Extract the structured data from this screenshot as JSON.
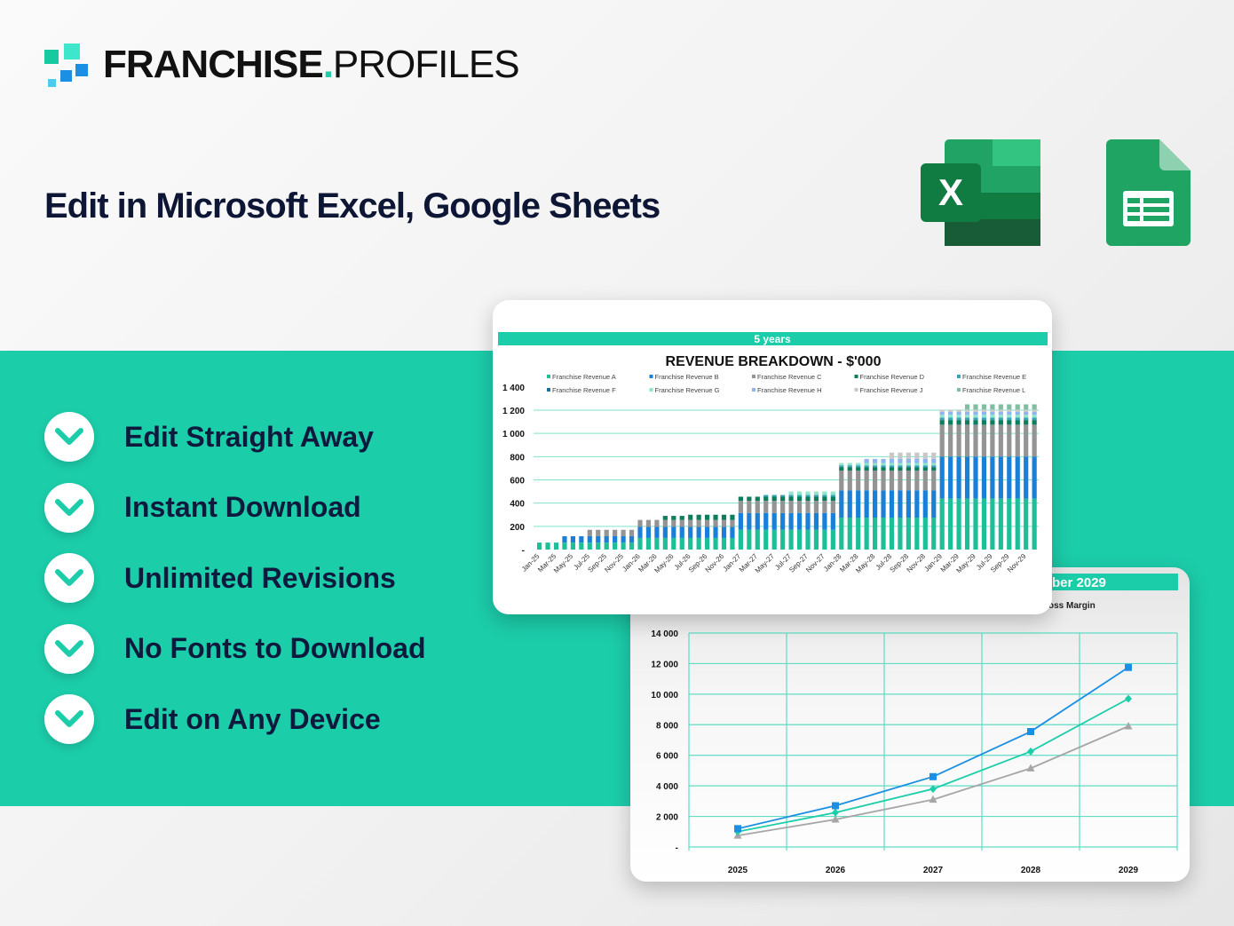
{
  "brand": {
    "logo_text_bold": "FRANCHISE",
    "logo_dot": ".",
    "logo_text_light": "PROFILES",
    "colors": {
      "teal": "#1ccdaa",
      "blue": "#1a8fe3",
      "navy": "#0e1635"
    }
  },
  "headline": "Edit in Microsoft Excel, Google Sheets",
  "app_icons": [
    "microsoft-excel-icon",
    "google-sheets-icon"
  ],
  "excel_letter": "X",
  "features": [
    "Edit Straight Away",
    "Instant Download",
    "Unlimited Revisions",
    "No Fonts to Download",
    "Edit on Any Device"
  ],
  "chart_data": [
    {
      "type": "bar",
      "stacked": true,
      "header": "5 years",
      "title": "REVENUE BREAKDOWN - $'000",
      "legend_position": "top",
      "grid": true,
      "ylim": [
        0,
        1400
      ],
      "yticks": [
        "-",
        "200",
        "400",
        "600",
        "800",
        "1 000",
        "1 200",
        "1 400"
      ],
      "xtick_labels": [
        "Jan-25",
        "Mar-25",
        "May-25",
        "Jul-25",
        "Sep-25",
        "Nov-25",
        "Jan-26",
        "Mar-26",
        "May-26",
        "Jul-26",
        "Sep-26",
        "Nov-26",
        "Jan-27",
        "Mar-27",
        "May-27",
        "Jul-27",
        "Sep-27",
        "Nov-27",
        "Jan-28",
        "Mar-28",
        "May-28",
        "Jul-28",
        "Sep-28",
        "Nov-28",
        "Jan-29",
        "Mar-29",
        "May-29",
        "Jul-29",
        "Sep-29",
        "Nov-29"
      ],
      "series": [
        {
          "name": "Franchise Revenue A",
          "color": "#1dbf98",
          "values": [
            60,
            60,
            60,
            60,
            60,
            60,
            60,
            60,
            60,
            60,
            60,
            60,
            100,
            100,
            100,
            100,
            100,
            100,
            100,
            100,
            100,
            100,
            100,
            100,
            170,
            170,
            170,
            170,
            170,
            170,
            170,
            170,
            170,
            170,
            170,
            170,
            275,
            275,
            275,
            275,
            275,
            275,
            275,
            275,
            275,
            275,
            275,
            275,
            440,
            440,
            440,
            440,
            440,
            440,
            440,
            440,
            440,
            440,
            440,
            440
          ]
        },
        {
          "name": "Franchise Revenue B",
          "color": "#1a7fd6",
          "values": [
            0,
            0,
            0,
            55,
            55,
            55,
            55,
            55,
            55,
            55,
            55,
            55,
            95,
            95,
            95,
            95,
            95,
            95,
            95,
            95,
            95,
            95,
            95,
            95,
            145,
            145,
            145,
            145,
            145,
            145,
            145,
            145,
            145,
            145,
            145,
            145,
            235,
            235,
            235,
            235,
            235,
            235,
            235,
            235,
            235,
            235,
            235,
            235,
            360,
            360,
            360,
            360,
            360,
            360,
            360,
            360,
            360,
            360,
            360,
            360
          ]
        },
        {
          "name": "Franchise Revenue C",
          "color": "#949494",
          "values": [
            0,
            0,
            0,
            0,
            0,
            0,
            55,
            55,
            55,
            55,
            55,
            55,
            60,
            60,
            60,
            60,
            60,
            60,
            60,
            60,
            60,
            60,
            60,
            60,
            105,
            105,
            105,
            105,
            105,
            105,
            105,
            105,
            105,
            105,
            105,
            105,
            170,
            170,
            170,
            170,
            170,
            170,
            170,
            170,
            170,
            170,
            170,
            170,
            275,
            275,
            275,
            275,
            275,
            275,
            275,
            275,
            275,
            275,
            275,
            275
          ]
        },
        {
          "name": "Franchise Revenue D",
          "color": "#0e7d5e",
          "values": [
            0,
            0,
            0,
            0,
            0,
            0,
            0,
            0,
            0,
            0,
            0,
            0,
            0,
            0,
            0,
            35,
            35,
            35,
            45,
            45,
            45,
            45,
            45,
            45,
            35,
            35,
            35,
            35,
            35,
            35,
            35,
            35,
            35,
            35,
            35,
            35,
            30,
            30,
            30,
            30,
            30,
            30,
            30,
            30,
            30,
            30,
            30,
            30,
            40,
            40,
            40,
            40,
            40,
            40,
            40,
            40,
            40,
            40,
            40,
            40
          ]
        },
        {
          "name": "Franchise Revenue E",
          "color": "#3aa3b8",
          "values": [
            0,
            0,
            0,
            0,
            0,
            0,
            0,
            0,
            0,
            0,
            0,
            0,
            0,
            0,
            0,
            0,
            0,
            0,
            0,
            0,
            0,
            0,
            0,
            0,
            0,
            0,
            0,
            15,
            15,
            15,
            15,
            15,
            15,
            15,
            15,
            15,
            15,
            15,
            15,
            15,
            15,
            15,
            15,
            15,
            15,
            15,
            15,
            15,
            20,
            20,
            20,
            20,
            20,
            20,
            20,
            20,
            20,
            20,
            20,
            20
          ]
        },
        {
          "name": "Franchise Revenue F",
          "color": "#1a6f9e",
          "values": [
            0,
            0,
            0,
            0,
            0,
            0,
            0,
            0,
            0,
            0,
            0,
            0,
            0,
            0,
            0,
            0,
            0,
            0,
            0,
            0,
            0,
            0,
            0,
            0,
            0,
            0,
            0,
            0,
            0,
            0,
            0,
            0,
            0,
            0,
            0,
            0,
            0,
            0,
            0,
            0,
            0,
            0,
            0,
            0,
            0,
            0,
            0,
            0,
            0,
            0,
            0,
            0,
            0,
            0,
            0,
            0,
            0,
            0,
            0,
            0
          ]
        },
        {
          "name": "Franchise Revenue G",
          "color": "#8ee6cb",
          "values": [
            0,
            0,
            0,
            0,
            0,
            0,
            0,
            0,
            0,
            0,
            0,
            0,
            0,
            0,
            0,
            0,
            0,
            0,
            0,
            0,
            0,
            0,
            0,
            0,
            0,
            0,
            0,
            0,
            0,
            0,
            30,
            30,
            30,
            30,
            30,
            30,
            20,
            20,
            20,
            20,
            20,
            20,
            20,
            20,
            20,
            20,
            20,
            20,
            25,
            25,
            25,
            25,
            25,
            25,
            25,
            25,
            25,
            25,
            25,
            25
          ]
        },
        {
          "name": "Franchise Revenue H",
          "color": "#8fb5ee",
          "values": [
            0,
            0,
            0,
            0,
            0,
            0,
            0,
            0,
            0,
            0,
            0,
            0,
            0,
            0,
            0,
            0,
            0,
            0,
            0,
            0,
            0,
            0,
            0,
            0,
            0,
            0,
            0,
            0,
            0,
            0,
            0,
            0,
            0,
            0,
            0,
            0,
            0,
            0,
            0,
            35,
            35,
            35,
            35,
            35,
            35,
            35,
            35,
            35,
            25,
            25,
            25,
            25,
            25,
            25,
            25,
            25,
            25,
            25,
            25,
            25
          ]
        },
        {
          "name": "Franchise Revenue J",
          "color": "#c8c8c8",
          "values": [
            0,
            0,
            0,
            0,
            0,
            0,
            0,
            0,
            0,
            0,
            0,
            0,
            0,
            0,
            0,
            0,
            0,
            0,
            0,
            0,
            0,
            0,
            0,
            0,
            0,
            0,
            0,
            0,
            0,
            0,
            0,
            0,
            0,
            0,
            0,
            0,
            0,
            0,
            0,
            0,
            0,
            0,
            55,
            55,
            55,
            55,
            55,
            55,
            20,
            20,
            20,
            20,
            20,
            20,
            20,
            20,
            20,
            20,
            20,
            20
          ]
        },
        {
          "name": "Franchise Revenue L",
          "color": "#7fbf9f",
          "values": [
            0,
            0,
            0,
            0,
            0,
            0,
            0,
            0,
            0,
            0,
            0,
            0,
            0,
            0,
            0,
            0,
            0,
            0,
            0,
            0,
            0,
            0,
            0,
            0,
            0,
            0,
            0,
            0,
            0,
            0,
            0,
            0,
            0,
            0,
            0,
            0,
            0,
            0,
            0,
            0,
            0,
            0,
            0,
            0,
            0,
            0,
            0,
            0,
            0,
            0,
            0,
            45,
            45,
            45,
            45,
            45,
            45,
            45,
            45,
            45
          ]
        }
      ]
    },
    {
      "type": "line",
      "header_fragment": "ber 2029",
      "legend_fragment": "oss Margin",
      "grid": true,
      "ylim": [
        0,
        14000
      ],
      "yticks": [
        "-",
        "2 000",
        "4 000",
        "6 000",
        "8 000",
        "10 000",
        "12 000",
        "14 000"
      ],
      "categories": [
        "2025",
        "2026",
        "2027",
        "2028",
        "2029"
      ],
      "series": [
        {
          "color": "#1a8fe3",
          "marker": "square",
          "values": [
            1200,
            2700,
            4600,
            7550,
            11750
          ]
        },
        {
          "color": "#1ccdaa",
          "marker": "diamond",
          "values": [
            1000,
            2250,
            3800,
            6250,
            9700
          ]
        },
        {
          "color": "#a6a6a6",
          "marker": "triangle",
          "values": [
            750,
            1800,
            3100,
            5150,
            7900
          ]
        }
      ]
    }
  ]
}
